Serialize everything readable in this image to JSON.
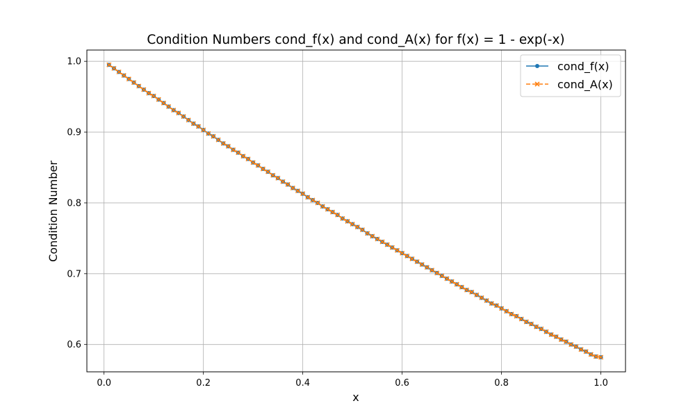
{
  "chart_data": {
    "type": "line",
    "title": "Condition Numbers cond_f(x) and cond_A(x) for f(x) = 1 - exp(-x)",
    "xlabel": "x",
    "ylabel": "Condition Number",
    "xlim": [
      -0.0345,
      1.0495
    ],
    "ylim": [
      0.5614,
      1.0159
    ],
    "xticks": [
      0.0,
      0.2,
      0.4,
      0.6,
      0.8,
      1.0
    ],
    "xtick_labels": [
      "0.0",
      "0.2",
      "0.4",
      "0.6",
      "0.8",
      "1.0"
    ],
    "yticks": [
      0.6,
      0.7,
      0.8,
      0.9,
      1.0
    ],
    "ytick_labels": [
      "0.6",
      "0.7",
      "0.8",
      "0.9",
      "1.0"
    ],
    "grid": true,
    "legend_position": "top-right",
    "x": [
      0.01,
      0.02,
      0.03,
      0.04,
      0.05,
      0.06,
      0.07,
      0.08,
      0.09,
      0.1,
      0.11,
      0.12,
      0.13,
      0.14,
      0.15,
      0.16,
      0.17,
      0.18,
      0.19,
      0.2,
      0.21,
      0.22,
      0.23,
      0.24,
      0.25,
      0.26,
      0.27,
      0.28,
      0.29,
      0.3,
      0.31,
      0.32,
      0.33,
      0.34,
      0.35,
      0.36,
      0.37,
      0.38,
      0.39,
      0.4,
      0.41,
      0.42,
      0.43,
      0.44,
      0.45,
      0.46,
      0.47,
      0.48,
      0.49,
      0.5,
      0.51,
      0.52,
      0.53,
      0.54,
      0.55,
      0.56,
      0.57,
      0.58,
      0.59,
      0.6,
      0.61,
      0.62,
      0.63,
      0.64,
      0.65,
      0.66,
      0.67,
      0.68,
      0.69,
      0.7,
      0.71,
      0.72,
      0.73,
      0.74,
      0.75,
      0.76,
      0.77,
      0.78,
      0.79,
      0.8,
      0.81,
      0.82,
      0.83,
      0.84,
      0.85,
      0.86,
      0.87,
      0.88,
      0.89,
      0.9,
      0.91,
      0.92,
      0.93,
      0.94,
      0.95,
      0.96,
      0.97,
      0.98,
      0.99,
      1.0
    ],
    "series": [
      {
        "name": "cond_f(x)",
        "color": "#1f77b4",
        "marker": "circle",
        "linestyle": "solid",
        "values": [
          0.995,
          0.99,
          0.985,
          0.98,
          0.975,
          0.97,
          0.965,
          0.96,
          0.955,
          0.951,
          0.946,
          0.941,
          0.936,
          0.931,
          0.927,
          0.922,
          0.917,
          0.912,
          0.908,
          0.903,
          0.898,
          0.894,
          0.889,
          0.884,
          0.88,
          0.875,
          0.871,
          0.866,
          0.862,
          0.857,
          0.853,
          0.848,
          0.844,
          0.839,
          0.835,
          0.83,
          0.826,
          0.821,
          0.817,
          0.813,
          0.808,
          0.804,
          0.8,
          0.795,
          0.791,
          0.787,
          0.783,
          0.778,
          0.774,
          0.77,
          0.766,
          0.762,
          0.757,
          0.753,
          0.749,
          0.745,
          0.741,
          0.737,
          0.733,
          0.729,
          0.725,
          0.721,
          0.717,
          0.713,
          0.709,
          0.705,
          0.701,
          0.697,
          0.693,
          0.689,
          0.685,
          0.681,
          0.677,
          0.674,
          0.67,
          0.666,
          0.662,
          0.658,
          0.655,
          0.651,
          0.647,
          0.643,
          0.64,
          0.636,
          0.632,
          0.629,
          0.625,
          0.622,
          0.618,
          0.614,
          0.611,
          0.607,
          0.604,
          0.6,
          0.597,
          0.593,
          0.59,
          0.586,
          0.583,
          0.582
        ]
      },
      {
        "name": "cond_A(x)",
        "color": "#ff7f0e",
        "marker": "x",
        "linestyle": "dashed",
        "values": [
          0.995,
          0.99,
          0.985,
          0.98,
          0.975,
          0.97,
          0.965,
          0.96,
          0.955,
          0.951,
          0.946,
          0.941,
          0.936,
          0.931,
          0.927,
          0.922,
          0.917,
          0.912,
          0.908,
          0.903,
          0.898,
          0.894,
          0.889,
          0.884,
          0.88,
          0.875,
          0.871,
          0.866,
          0.862,
          0.857,
          0.853,
          0.848,
          0.844,
          0.839,
          0.835,
          0.83,
          0.826,
          0.821,
          0.817,
          0.813,
          0.808,
          0.804,
          0.8,
          0.795,
          0.791,
          0.787,
          0.783,
          0.778,
          0.774,
          0.77,
          0.766,
          0.762,
          0.757,
          0.753,
          0.749,
          0.745,
          0.741,
          0.737,
          0.733,
          0.729,
          0.725,
          0.721,
          0.717,
          0.713,
          0.709,
          0.705,
          0.701,
          0.697,
          0.693,
          0.689,
          0.685,
          0.681,
          0.677,
          0.674,
          0.67,
          0.666,
          0.662,
          0.658,
          0.655,
          0.651,
          0.647,
          0.643,
          0.64,
          0.636,
          0.632,
          0.629,
          0.625,
          0.622,
          0.618,
          0.614,
          0.611,
          0.607,
          0.604,
          0.6,
          0.597,
          0.593,
          0.59,
          0.586,
          0.583,
          0.582
        ]
      }
    ]
  }
}
